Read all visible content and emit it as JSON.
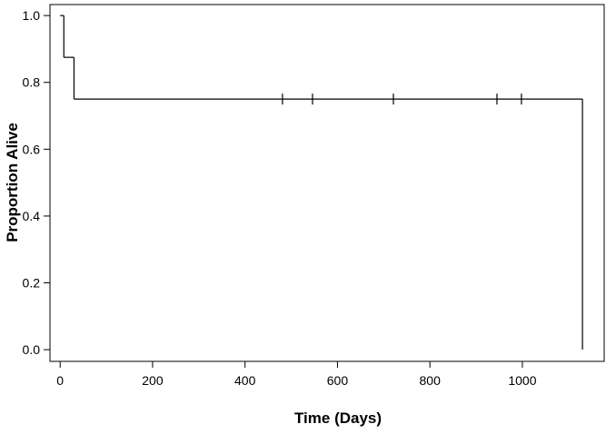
{
  "chart_data": {
    "type": "step",
    "x_label": "Time (Days)",
    "y_label": "Proportion Alive",
    "x": [
      0,
      8,
      30,
      1130
    ],
    "values": [
      1.0,
      0.875,
      0.75,
      0.0
    ],
    "color": "#000000",
    "censored": {
      "x": [
        481,
        546,
        721,
        945,
        998
      ],
      "values": [
        0.75,
        0.75,
        0.75,
        0.75,
        0.75
      ]
    },
    "xlim": [
      -22,
      1177
    ],
    "xticks": [
      0,
      200,
      400,
      600,
      800,
      1000
    ],
    "ylim": [
      -0.035,
      1.033
    ],
    "yticks": [
      {
        "value": 0,
        "label": "0.0"
      },
      {
        "value": 0.2,
        "label": "0.2"
      },
      {
        "value": 0.4,
        "label": "0.4"
      },
      {
        "value": 0.6,
        "label": "0.6"
      },
      {
        "value": 0.8,
        "label": "0.8"
      },
      {
        "value": 1.0,
        "label": "1.0"
      }
    ]
  }
}
